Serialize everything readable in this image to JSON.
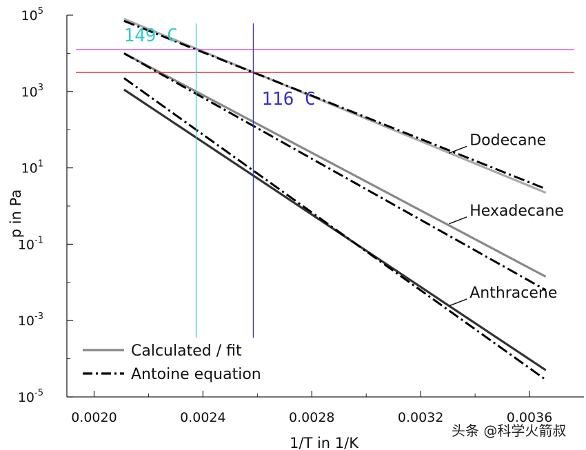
{
  "chart_data": {
    "type": "line",
    "xlabel": "1/T in 1/K",
    "ylabel": "p in Pa",
    "xlim": [
      0.0019,
      0.0038
    ],
    "ylim_log10": [
      -5,
      5
    ],
    "y_scale": "log",
    "x_ticks": [
      "0.0020",
      "0.0024",
      "0.0028",
      "0.0032",
      "0.0036"
    ],
    "x_tick_values": [
      0.002,
      0.0024,
      0.0028,
      0.0032,
      0.0036
    ],
    "y_ticks": [
      {
        "base": "10",
        "exp": "5",
        "log10": 5
      },
      {
        "base": "10",
        "exp": "3",
        "log10": 3
      },
      {
        "base": "10",
        "exp": "1",
        "log10": 1
      },
      {
        "base": "10",
        "exp": "-1",
        "log10": -1
      },
      {
        "base": "10",
        "exp": "-3",
        "log10": -3
      },
      {
        "base": "10",
        "exp": "-5",
        "log10": -5
      }
    ],
    "grid": false,
    "legend": {
      "position": "bottom-left",
      "entries": [
        {
          "label": "Calculated / fit",
          "style": "solid",
          "color": "#888888"
        },
        {
          "label": "Antoine equation",
          "style": "dashdot",
          "color": "#000000"
        }
      ]
    },
    "series": [
      {
        "name": "Dodecane",
        "kind": "calculated",
        "color": "#aaaaaa",
        "x": [
          0.00211,
          0.00366
        ],
        "log10_y": [
          4.9,
          0.35
        ]
      },
      {
        "name": "Dodecane",
        "kind": "antoine",
        "color": "#000000",
        "x": [
          0.00211,
          0.00366
        ],
        "log10_y": [
          4.85,
          0.45
        ]
      },
      {
        "name": "Hexadecane",
        "kind": "calculated",
        "color": "#888888",
        "x": [
          0.00211,
          0.00366
        ],
        "log10_y": [
          4.0,
          -1.85
        ]
      },
      {
        "name": "Hexadecane",
        "kind": "antoine",
        "color": "#000000",
        "x": [
          0.00211,
          0.00366
        ],
        "log10_y": [
          4.0,
          -2.2
        ]
      },
      {
        "name": "Anthracene",
        "kind": "calculated",
        "color": "#333333",
        "x": [
          0.00211,
          0.00366
        ],
        "log10_y": [
          3.05,
          -4.3
        ]
      },
      {
        "name": "Anthracene",
        "kind": "antoine",
        "color": "#000000",
        "x": [
          0.00211,
          0.00366
        ],
        "log10_y": [
          3.35,
          -4.55
        ]
      }
    ],
    "series_labels": [
      {
        "text": "Dodecane",
        "x": 0.00338,
        "log10_y": 1.6
      },
      {
        "text": "Hexadecane",
        "x": 0.00338,
        "log10_y": -0.25
      },
      {
        "text": "Anthracene",
        "x": 0.00338,
        "log10_y": -2.4
      }
    ],
    "annotations": {
      "hlines": [
        {
          "log10_y": 4.1,
          "color": "#dd44dd"
        },
        {
          "log10_y": 3.5,
          "color": "#dd2222"
        }
      ],
      "vlines": [
        {
          "x": 0.002375,
          "color": "#33cccc",
          "label": "149 C"
        },
        {
          "x": 0.002585,
          "color": "#3333cc",
          "label": "116 C"
        }
      ]
    }
  },
  "watermark": "头条 @科学火箭叔"
}
